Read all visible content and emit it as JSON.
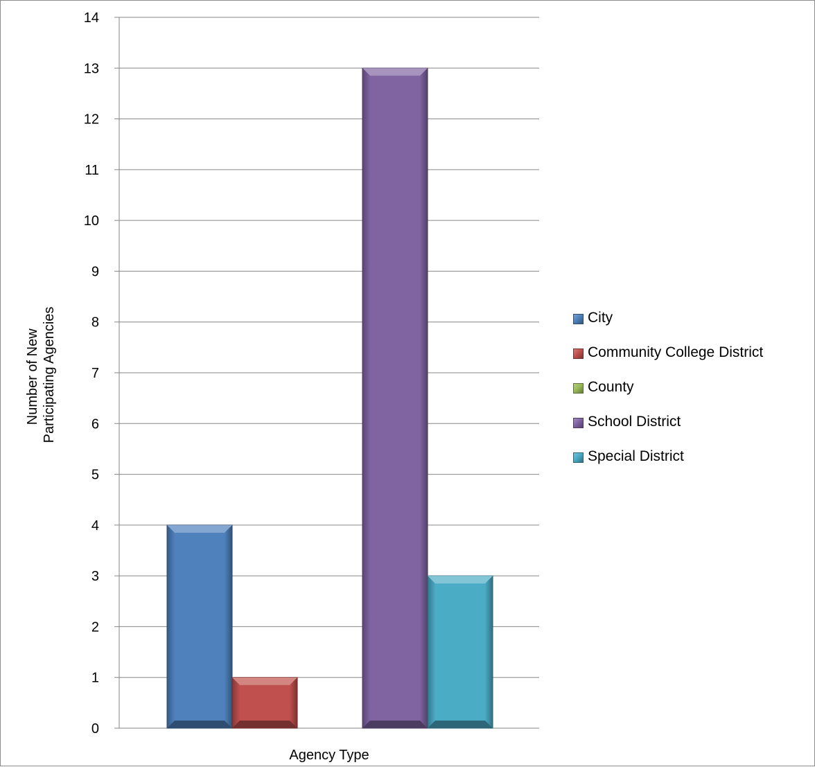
{
  "chart_data": {
    "type": "bar",
    "title": "",
    "xlabel": "Agency Type",
    "ylabel_lines": [
      "Number of New",
      "Participating Agencies"
    ],
    "ylim": [
      0,
      14
    ],
    "yticks": [
      0,
      1,
      2,
      3,
      4,
      5,
      6,
      7,
      8,
      9,
      10,
      11,
      12,
      13,
      14
    ],
    "grid": true,
    "legend_position": "right",
    "series": [
      {
        "name": "City",
        "value": 4,
        "color": "#4f81bd"
      },
      {
        "name": "Community College District",
        "value": 1,
        "color": "#c0504d"
      },
      {
        "name": "County",
        "value": 0,
        "color": "#9bbb59"
      },
      {
        "name": "School District",
        "value": 13,
        "color": "#8064a2"
      },
      {
        "name": "Special District",
        "value": 3,
        "color": "#4bacc6"
      }
    ]
  }
}
